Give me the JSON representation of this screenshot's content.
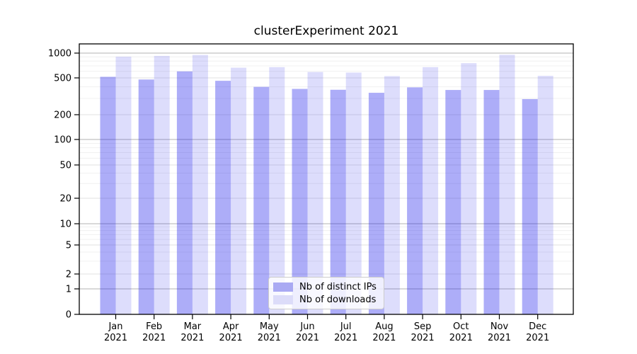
{
  "title": "clusterExperiment 2021",
  "legend": {
    "items": [
      {
        "label": "Nb of distinct IPs",
        "color": "#a9a9f3"
      },
      {
        "label": "Nb of downloads",
        "color": "#dcdcf9"
      }
    ]
  },
  "chart_data": {
    "type": "bar",
    "title": "clusterExperiment 2021",
    "categories": [
      "Jan",
      "Feb",
      "Mar",
      "Apr",
      "May",
      "Jun",
      "Jul",
      "Aug",
      "Sep",
      "Oct",
      "Nov",
      "Dec"
    ],
    "category_year": "2021",
    "series": [
      {
        "name": "Nb of distinct IPs",
        "color": "rgba(15,15,235,0.34)",
        "values": [
          515,
          480,
          600,
          465,
          400,
          380,
          372,
          345,
          395,
          370,
          370,
          295
        ]
      },
      {
        "name": "Nb of downloads",
        "color": "rgba(15,15,235,0.14)",
        "values": [
          905,
          925,
          950,
          665,
          675,
          590,
          580,
          525,
          675,
          755,
          955,
          530
        ]
      }
    ],
    "y_ticks": [
      0,
      1,
      2,
      5,
      10,
      20,
      50,
      100,
      200,
      500,
      1000
    ],
    "ylabel": "",
    "xlabel": "",
    "y_scale": "log-like (0 linear below 1)",
    "ylim": [
      0,
      1200
    ],
    "grid": true,
    "legend_position": "lower center",
    "colors": {
      "major_grid": "#b3b3b3",
      "tick_grid": "#e2e2e2",
      "minor_grid": "#f0f0f0",
      "axis": "#000000"
    }
  }
}
